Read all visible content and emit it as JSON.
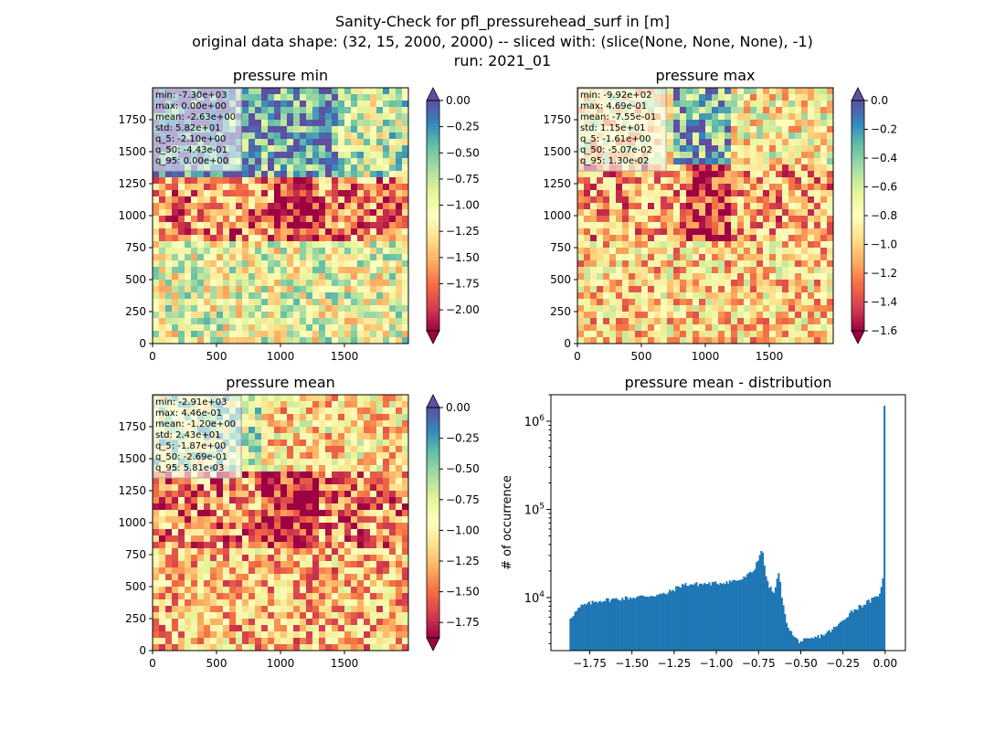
{
  "figure": {
    "title_line1": "Sanity-Check for pfl_pressurehead_surf in [m]",
    "title_line2": "original data shape: (32, 15, 2000, 2000) -- sliced with: (slice(None, None, None), -1)",
    "title_line3": "run: 2021_01"
  },
  "chart_data": [
    {
      "type": "heatmap",
      "title": "pressure min",
      "colormap": "Spectral",
      "xlim": [
        0,
        2000
      ],
      "ylim": [
        0,
        2000
      ],
      "xticks": [
        "0",
        "500",
        "1000",
        "1500"
      ],
      "yticks": [
        "0",
        "250",
        "500",
        "750",
        "1000",
        "1250",
        "1500",
        "1750"
      ],
      "colorbar": {
        "range": [
          -2.2,
          0.0
        ],
        "extend": "both",
        "ticks": [
          "0.00",
          "−0.25",
          "−0.50",
          "−0.75",
          "−1.00",
          "−1.25",
          "−1.50",
          "−1.75",
          "−2.00"
        ]
      },
      "stats": [
        "min: -7.30e+03",
        "max: 0.00e+00",
        "mean: -2.63e+00",
        "std: 5.82e+01",
        "q_5: -2.10e+00",
        "q_50: -4.43e-01",
        "q_95: 0.00e+00"
      ]
    },
    {
      "type": "heatmap",
      "title": "pressure max",
      "colormap": "Spectral",
      "xlim": [
        0,
        2000
      ],
      "ylim": [
        0,
        2000
      ],
      "xticks": [
        "0",
        "500",
        "1000",
        "1500"
      ],
      "yticks": [
        "0",
        "250",
        "500",
        "750",
        "1000",
        "1250",
        "1500",
        "1750"
      ],
      "colorbar": {
        "range": [
          -1.6,
          0.0
        ],
        "extend": "both",
        "ticks": [
          "0.0",
          "−0.2",
          "−0.4",
          "−0.6",
          "−0.8",
          "−1.0",
          "−1.2",
          "−1.4",
          "−1.6"
        ]
      },
      "stats": [
        "min: -9.92e+02",
        "max: 4.69e-01",
        "mean: -7.55e-01",
        "std: 1.15e+01",
        "q_5: -1.61e+00",
        "q_50: -5.07e-02",
        "q_95: 1.30e-02"
      ]
    },
    {
      "type": "heatmap",
      "title": "pressure mean",
      "colormap": "Spectral",
      "xlim": [
        0,
        2000
      ],
      "ylim": [
        0,
        2000
      ],
      "xticks": [
        "0",
        "500",
        "1000",
        "1500"
      ],
      "yticks": [
        "0",
        "250",
        "500",
        "750",
        "1000",
        "1250",
        "1500",
        "1750"
      ],
      "colorbar": {
        "range": [
          -1.875,
          0.0
        ],
        "extend": "both",
        "ticks": [
          "0.00",
          "−0.25",
          "−0.50",
          "−0.75",
          "−1.00",
          "−1.25",
          "−1.50",
          "−1.75"
        ]
      },
      "stats": [
        "min: -2.91e+03",
        "max: 4.46e-01",
        "mean: -1.20e+00",
        "std: 2.43e+01",
        "q_5: -1.87e+00",
        "q_50: -2.69e-01",
        "q_95: 5.81e-03"
      ]
    },
    {
      "type": "bar",
      "title": "pressure mean - distribution",
      "ylabel": "# of occurrence",
      "yscale": "log",
      "xlim": [
        -1.98,
        0.12
      ],
      "ylim": [
        2500,
        2000000
      ],
      "xticks": [
        "−1.75",
        "−1.50",
        "−1.25",
        "−1.00",
        "−0.75",
        "−0.50",
        "−0.25",
        "0.00"
      ],
      "ytick_labels": [
        "10^4",
        "10^5",
        "10^6"
      ],
      "color": "#1f77b4",
      "histogram": {
        "bins_from": -1.87,
        "bins_to": 0.0,
        "bin_count": 200,
        "profile_x": [
          -1.87,
          -1.8,
          -1.7,
          -1.5,
          -1.3,
          -1.2,
          -1.0,
          -0.85,
          -0.78,
          -0.73,
          -0.7,
          -0.66,
          -0.63,
          -0.6,
          -0.58,
          -0.55,
          -0.53,
          -0.51,
          -0.45,
          -0.35,
          -0.28,
          -0.2,
          -0.1,
          -0.05,
          -0.02,
          -0.005,
          0.0
        ],
        "profile_y": [
          5800,
          8000,
          9200,
          10000,
          11000,
          14000,
          14500,
          16000,
          20000,
          36000,
          15000,
          11000,
          19000,
          7000,
          5000,
          3800,
          3400,
          3200,
          3300,
          3900,
          4800,
          7000,
          9000,
          10000,
          13000,
          22000,
          1500000
        ]
      }
    }
  ]
}
